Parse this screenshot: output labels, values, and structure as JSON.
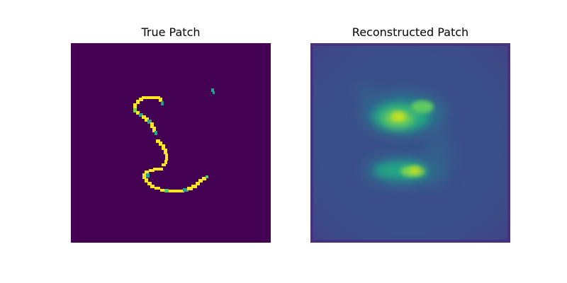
{
  "panels": [
    {
      "title": "True Patch"
    },
    {
      "title": "Reconstructed Patch"
    }
  ],
  "colors": {
    "viridis_low": "#440154",
    "viridis_mid": "#21918c",
    "viridis_high": "#fde725",
    "recon_background": "#3b4f8a"
  },
  "colormap": "viridis"
}
